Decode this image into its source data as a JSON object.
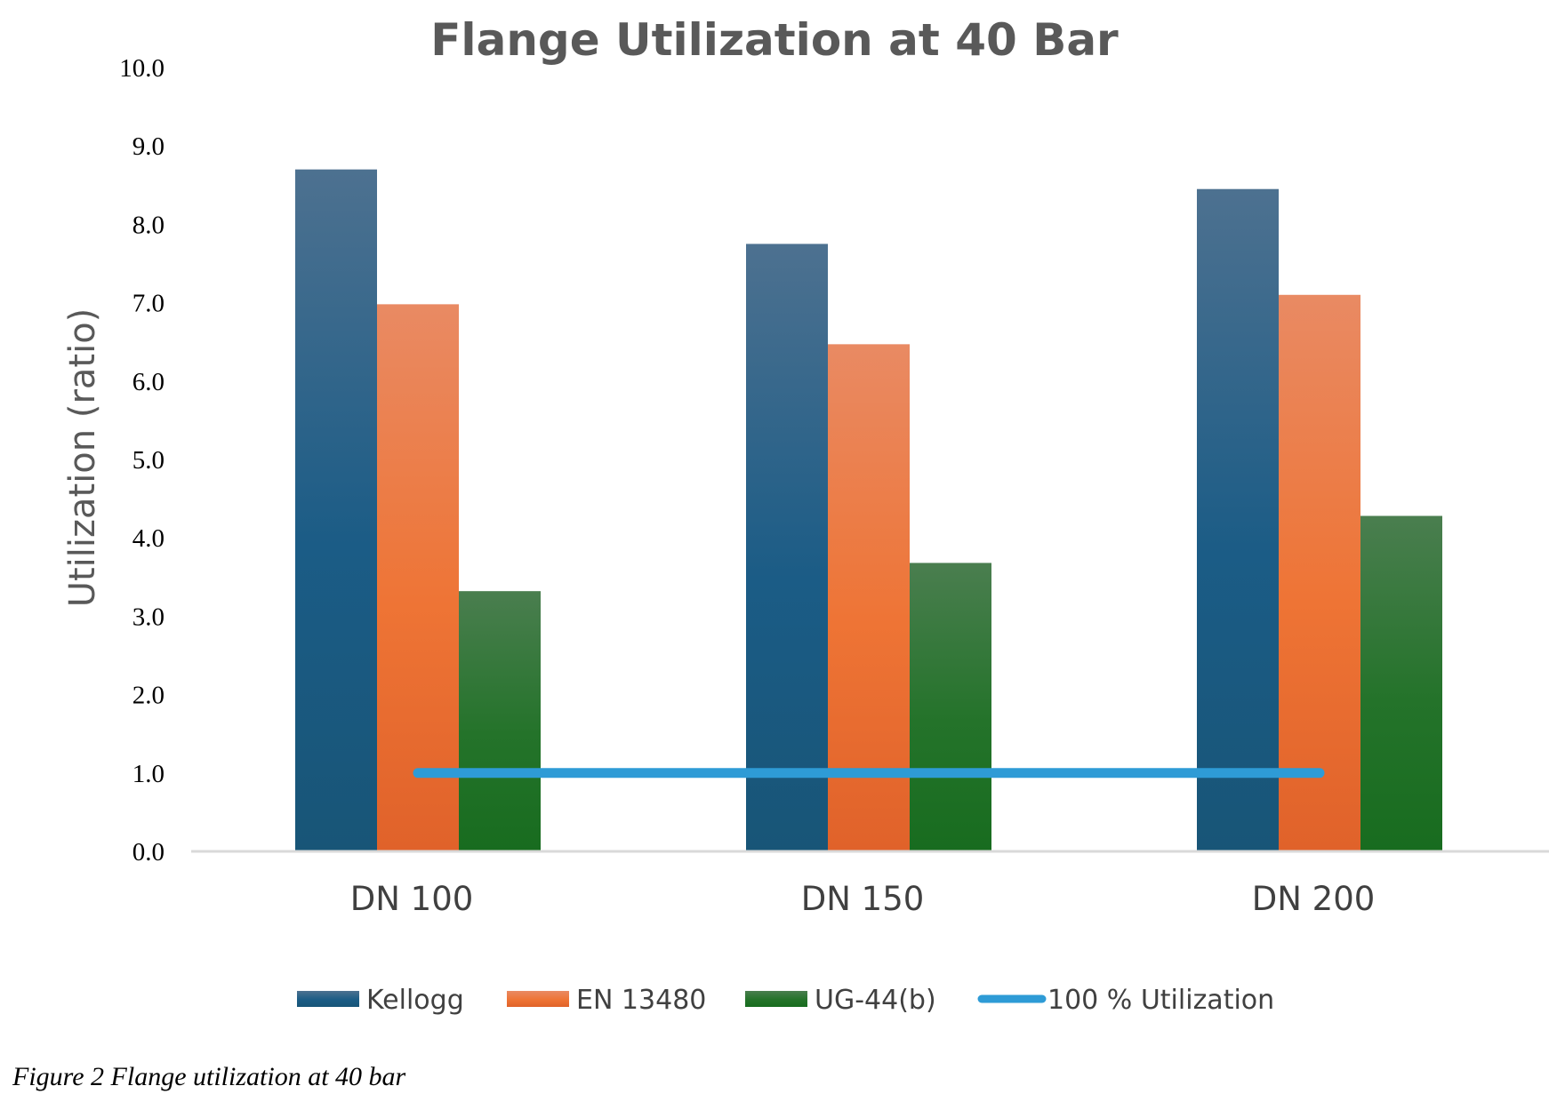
{
  "chart_data": {
    "type": "bar",
    "title": "Flange Utilization at 40 Bar",
    "ylabel": "Utilization (ratio)",
    "xlabel": "",
    "ylim": [
      0,
      10
    ],
    "yticks": [
      "0.0",
      "1.0",
      "2.0",
      "3.0",
      "4.0",
      "5.0",
      "6.0",
      "7.0",
      "8.0",
      "9.0",
      "10.0"
    ],
    "categories": [
      "DN 100",
      "DN 150",
      "DN 200"
    ],
    "series": [
      {
        "name": "Kellogg",
        "values": [
          8.7,
          7.75,
          8.45
        ],
        "color": "#1f5f8b"
      },
      {
        "name": "EN 13480",
        "values": [
          6.98,
          6.47,
          7.1
        ],
        "color": "#ef7333"
      },
      {
        "name": "UG-44(b)",
        "values": [
          3.32,
          3.68,
          4.28
        ],
        "color": "#2e7d32"
      }
    ],
    "reference_line": {
      "name": "100 % Utilization",
      "value": 1.0,
      "color": "#2e9bd6"
    },
    "grid": false,
    "legend_position": "bottom"
  },
  "caption": "Figure 2 Flange utilization at 40 bar"
}
